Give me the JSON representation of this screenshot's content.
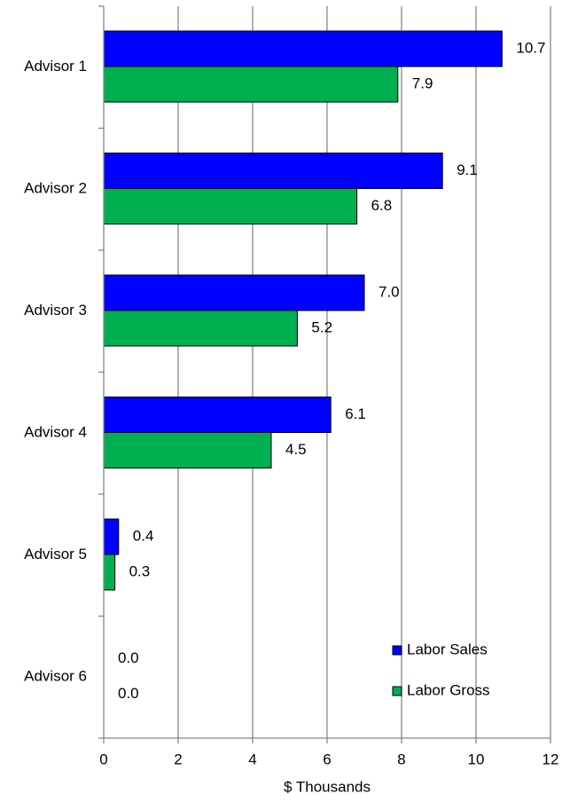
{
  "chart_data": {
    "type": "bar",
    "orientation": "horizontal",
    "categories": [
      "Advisor 1",
      "Advisor 2",
      "Advisor 3",
      "Advisor 4",
      "Advisor 5",
      "Advisor 6"
    ],
    "series": [
      {
        "name": "Labor Sales",
        "color": "#0000ff",
        "values": [
          10.7,
          9.1,
          7.0,
          6.1,
          0.4,
          0.0
        ],
        "value_labels": [
          "10.7",
          "9.1",
          "7.0",
          "6.1",
          "0.4",
          "0.0"
        ]
      },
      {
        "name": "Labor Gross",
        "color": "#00b050",
        "values": [
          7.9,
          6.8,
          5.2,
          4.5,
          0.3,
          0.0
        ],
        "value_labels": [
          "7.9",
          "6.8",
          "5.2",
          "4.5",
          "0.3",
          "0.0"
        ]
      }
    ],
    "xlabel": "$ Thousands",
    "xlim": [
      0,
      12
    ],
    "xticks": [
      0,
      2,
      4,
      6,
      8,
      10,
      12
    ],
    "grid": true,
    "legend": "lower right"
  }
}
